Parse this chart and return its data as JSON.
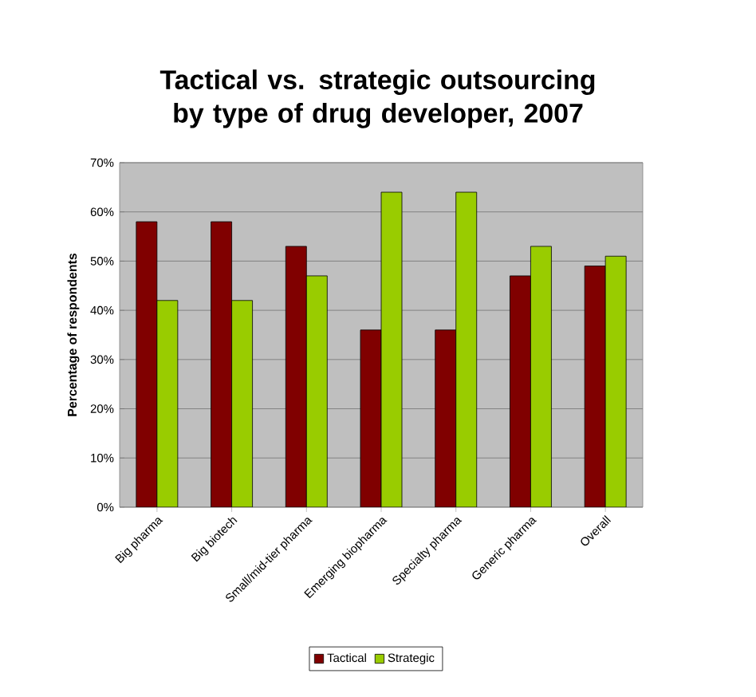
{
  "chart_data": {
    "type": "bar",
    "title": "Tactical vs. strategic outsourcing by type of drug developer, 2007",
    "ylabel": "Percentage of respondents",
    "categories": [
      "Big pharma",
      "Big biotech",
      "Small/mid-tier pharma",
      "Emerging biopharma",
      "Specialty pharma",
      "Generic pharma",
      "Overall"
    ],
    "series": [
      {
        "name": "Tactical",
        "color": "#800000",
        "values": [
          58,
          58,
          53,
          36,
          36,
          47,
          49
        ]
      },
      {
        "name": "Strategic",
        "color": "#99cc00",
        "values": [
          42,
          42,
          47,
          64,
          64,
          53,
          51
        ]
      }
    ],
    "ylim": [
      0,
      70
    ],
    "yticks": [
      {
        "value": 0,
        "label": "0%"
      },
      {
        "value": 10,
        "label": "10%"
      },
      {
        "value": 20,
        "label": "20%"
      },
      {
        "value": 30,
        "label": "30%"
      },
      {
        "value": 40,
        "label": "40%"
      },
      {
        "value": 50,
        "label": "50%"
      },
      {
        "value": 60,
        "label": "60%"
      },
      {
        "value": 70,
        "label": "70%"
      }
    ],
    "grid": "y",
    "legend": "bottom"
  }
}
